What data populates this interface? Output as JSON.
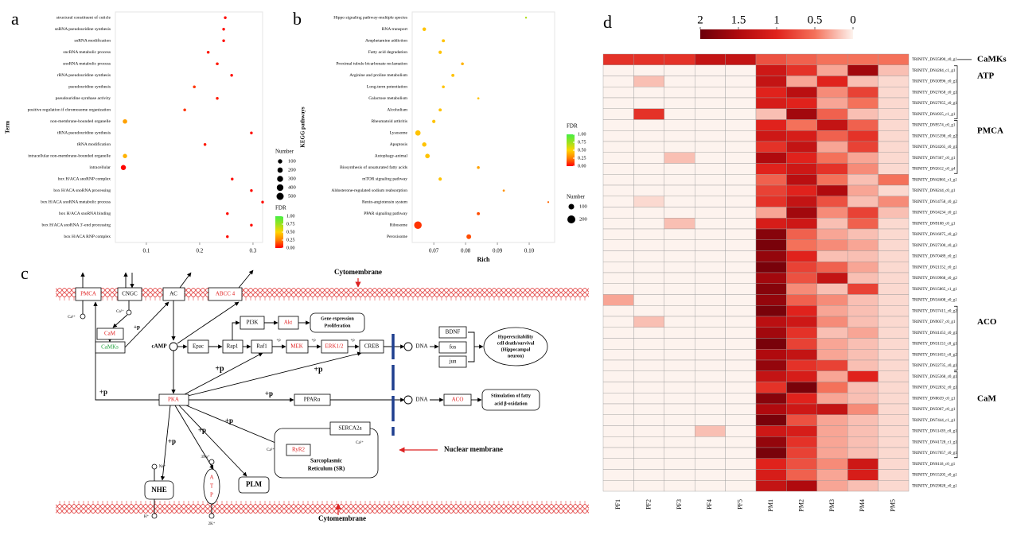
{
  "panel_labels": [
    "a",
    "b",
    "c",
    "d"
  ],
  "chart_data": [
    {
      "type": "dot",
      "ylabel": "Term",
      "categories": [
        "structural constituent of cuticle",
        "snRNA pseudouridine synthesis",
        "snRNA modification",
        "sncRNA metabolic process",
        "snoRNA metabolic process",
        "rRNA pseudouridine synthesis",
        "pseudouridine synthesis",
        "pseudouridine synthase activity",
        "positive regulation if chromosome organization",
        "non-membrane-bounded organelle",
        "tRNA pseudouridine synthesis",
        "tRNA modification",
        "intracellular non-membrane-bounded organelle",
        "intracellular",
        "box H/ACA snoRNP complex",
        "box H/ACA snoRNA processing",
        "box H/ACA snoRNA metabolic process",
        "box H/ACA snoRNA binding",
        "box H/ACA snoRNA 3'-end processing",
        "box H/ACA RNP complex"
      ],
      "values": [
        0.248,
        0.245,
        0.245,
        0.216,
        0.233,
        0.26,
        0.19,
        0.233,
        0.172,
        0.06,
        0.297,
        0.21,
        0.06,
        0.057,
        0.261,
        0.297,
        0.318,
        0.252,
        0.297,
        0.252
      ],
      "sizes": [
        8,
        8,
        8,
        12,
        12,
        8,
        10,
        9,
        10,
        110,
        8,
        10,
        95,
        180,
        8,
        8,
        8,
        8,
        8,
        8
      ],
      "fdr": [
        0.02,
        0.02,
        0.02,
        0.05,
        0.05,
        0.02,
        0.1,
        0.05,
        0.1,
        0.35,
        0.02,
        0.05,
        0.4,
        0.01,
        0.02,
        0.02,
        0.02,
        0.02,
        0.02,
        0.02
      ],
      "xlim": [
        0.042,
        0.318
      ],
      "xticks": [
        0.1,
        0.2,
        0.3
      ],
      "size_legend": {
        "title": "Number",
        "values": [
          100,
          200,
          300,
          400,
          500
        ]
      },
      "color_legend": {
        "title": "FDR",
        "clim": [
          0,
          1
        ],
        "ticks": [
          {
            "value": 1,
            "label": "1.00"
          },
          {
            "value": 0.75,
            "label": "0.75"
          },
          {
            "value": 0.5,
            "label": "0.50"
          },
          {
            "value": 0.25,
            "label": "0.25"
          },
          {
            "value": 0,
            "label": "0.00"
          }
        ],
        "colors": [
          "#ff0000",
          "#ff7f00",
          "#ffd400",
          "#9be21e",
          "#44ee44"
        ]
      }
    },
    {
      "type": "dot",
      "xlabel": "Rich",
      "ylabel": "KEGG pathways",
      "categories": [
        "Hippo signaling pathway-multiple species",
        "RNA transport",
        "Amphetamine addiction",
        "Fatty acid degradation",
        "Proximal tubule bicarbonate reclamation",
        "Arginine and proline metabolism",
        "Long-term potentiation",
        "Galactose metabolism",
        "Alcoholism",
        "Rheumatoid arthritis",
        "Lysosome",
        "Apoptosis",
        "Autophagy-animal",
        "Biosynthesis of unsaturated fatty acids",
        "mTOR signaling pathway",
        "Aldosterone-regulated sodium reabsorption",
        "Renin-angiotensin system",
        "PPAR signaling pathway",
        "Ribosome",
        "Peroxisome"
      ],
      "values": [
        0.099,
        0.067,
        0.073,
        0.072,
        0.079,
        0.076,
        0.073,
        0.084,
        0.072,
        0.07,
        0.065,
        0.067,
        0.068,
        0.084,
        0.072,
        0.092,
        0.106,
        0.084,
        0.065,
        0.081
      ],
      "sizes": [
        12,
        40,
        30,
        35,
        25,
        30,
        25,
        15,
        30,
        35,
        90,
        60,
        65,
        25,
        35,
        15,
        10,
        30,
        180,
        70
      ],
      "fdr": [
        0.7,
        0.45,
        0.45,
        0.45,
        0.4,
        0.45,
        0.45,
        0.45,
        0.45,
        0.45,
        0.45,
        0.45,
        0.45,
        0.35,
        0.45,
        0.3,
        0.2,
        0.15,
        0.1,
        0.15
      ],
      "xlim": [
        0.0632,
        0.108
      ],
      "xticks": [
        0.07,
        0.08,
        0.09,
        {
          "value": 0.1,
          "label": "0.10"
        }
      ],
      "size_legend": {
        "title": "Number",
        "values": [
          100,
          200
        ]
      },
      "color_legend": {
        "title": "FDR",
        "clim": [
          0,
          1
        ],
        "ticks": [
          {
            "value": 1,
            "label": "1.00"
          },
          {
            "value": 0.75,
            "label": "0.75"
          },
          {
            "value": 0.5,
            "label": "0.50"
          },
          {
            "value": 0.25,
            "label": "0.25"
          },
          {
            "value": 0,
            "label": "0.00"
          }
        ],
        "colors": [
          "#ff0000",
          "#ff7f00",
          "#ffd400",
          "#9be21e",
          "#44ee44"
        ]
      }
    },
    {
      "type": "heatmap",
      "categories": [
        "PF1",
        "PF2",
        "PF3",
        "PF4",
        "PF5",
        "PM1",
        "PM2",
        "PM3",
        "PM4",
        "PM5"
      ],
      "rows": [
        "TRINITY_DN35890_c0_g1",
        "TRINITY_DN4284_c1_g1",
        "TRINITY_DN30996_c0_g1",
        "TRINITY_DN27658_c0_g1",
        "TRINITY_DN27955_c0_g1",
        "TRINITY_DN4935_c1_g1",
        "TRINITY_DN9574_c0_g1",
        "TRINITY_DN15398_c0_g2",
        "TRINITY_DN24265_c0_g1",
        "TRINITY_DN7367_c0_g1",
        "TRINITY_DN2612_c0_g4",
        "TRINITY_DN42865_c1_g1",
        "TRINITY_DN6244_c0_g1",
        "TRINITY_DN14758_c0_g2",
        "TRINITY_DN34234_c0_g1",
        "TRINITY_DN9108_c0_g1",
        "TRINITY_DN16075_c0_g2",
        "TRINITY_DN27300_c0_g3",
        "TRINITY_DN70489_c0_g1",
        "TRINITY_DN21552_c0_g1",
        "TRINITY_DN19968_c0_g2",
        "TRINITY_DN15865_c1_g1",
        "TRINITY_DN34408_c0_g1",
        "TRINITY_DN37415_c0_g2",
        "TRINITY_DN9057_c0_g1",
        "TRINITY_DN41453_c0_g1",
        "TRINITY_DN31153_c0_g1",
        "TRINITY_DN11653_c0_g2",
        "TRINITY_DN22735_c0_g1",
        "TRINITY_DN25368_c0_g1",
        "TRINITY_DN22832_c0_g1",
        "TRINITY_DN8639_c0_g1",
        "TRINITY_DN5067_c0_g1",
        "TRINITY_DN7444_c1_g1",
        "TRINITY_DN11439_c0_g1",
        "TRINITY_DN41728_c1_g1",
        "TRINITY_DN17057_c0_g1",
        "TRINITY_DN6118_c0_g1",
        "TRINITY_DN15205_c0_g1",
        "TRINITY_DN29828_c0_g1"
      ],
      "values": [
        [
          0.9,
          0.9,
          0.9,
          1.3,
          1.3,
          0.7,
          0.6,
          0.5,
          0.5,
          0.5
        ],
        [
          0,
          0,
          0,
          0,
          0,
          1.2,
          0.9,
          0.3,
          1.6,
          0.2
        ],
        [
          0,
          0.2,
          0,
          0,
          0,
          1.3,
          0.3,
          1.0,
          0.2,
          0.1
        ],
        [
          0,
          0,
          0,
          0,
          0,
          1.0,
          1.4,
          0.4,
          0.8,
          0.1
        ],
        [
          0,
          0,
          0,
          0,
          0,
          1.1,
          1.0,
          0.3,
          0.5,
          0.1
        ],
        [
          0,
          0.9,
          0,
          0,
          0,
          0.2,
          1.6,
          0.6,
          0.2,
          0.1
        ],
        [
          0,
          0,
          0,
          0,
          0,
          1.0,
          0.5,
          1.3,
          0.6,
          0.1
        ],
        [
          0,
          0,
          0,
          0,
          0,
          1.2,
          1.1,
          0.6,
          0.9,
          0.1
        ],
        [
          0,
          0,
          0,
          0,
          0,
          0.9,
          1.3,
          0.3,
          0.8,
          0.1
        ],
        [
          0,
          0,
          0.2,
          0,
          0,
          1.5,
          1.0,
          0.5,
          0.3,
          0.1
        ],
        [
          0,
          0,
          0,
          0,
          0,
          1.0,
          1.2,
          0.9,
          0.4,
          0.1
        ],
        [
          0,
          0,
          0,
          0,
          0,
          0.6,
          1.4,
          0.5,
          0.2,
          0.5
        ],
        [
          0,
          0,
          0,
          0,
          0,
          0.8,
          1.0,
          1.5,
          0.3,
          0.1
        ],
        [
          0,
          0.1,
          0,
          0,
          0,
          0.9,
          1.3,
          0.7,
          0.2,
          0.4
        ],
        [
          0,
          0,
          0,
          0,
          0,
          0.3,
          1.6,
          0.4,
          0.8,
          0.2
        ],
        [
          0,
          0,
          0.2,
          0,
          0,
          1.1,
          1.2,
          0.2,
          0.6,
          0.1
        ],
        [
          0,
          0,
          0,
          0,
          0,
          1.8,
          0.6,
          0.3,
          0.2,
          0.1
        ],
        [
          0,
          0,
          0,
          0,
          0,
          1.9,
          0.5,
          0.4,
          0.3,
          0.1
        ],
        [
          0,
          0,
          0,
          0,
          0,
          1.7,
          1.0,
          0.2,
          0.2,
          0.1
        ],
        [
          0,
          0,
          0,
          0,
          0,
          1.9,
          0.8,
          0.6,
          0.3,
          0.1
        ],
        [
          0,
          0,
          0,
          0,
          0,
          1.6,
          0.7,
          1.3,
          0.2,
          0.1
        ],
        [
          0,
          0,
          0,
          0,
          0,
          1.8,
          0.4,
          0.2,
          0.8,
          0.1
        ],
        [
          0.3,
          0,
          0,
          0,
          0,
          1.7,
          0.6,
          0.4,
          0.2,
          0.1
        ],
        [
          0,
          0,
          0,
          0,
          0,
          1.9,
          1.0,
          0.3,
          0.2,
          0.1
        ],
        [
          0,
          0.2,
          0,
          0,
          0,
          1.4,
          1.2,
          0.4,
          0.2,
          0.1
        ],
        [
          0,
          0,
          0,
          0,
          0,
          1.6,
          0.9,
          0.2,
          0.3,
          0.1
        ],
        [
          0,
          0,
          0,
          0,
          0,
          1.9,
          0.8,
          0.3,
          0.2,
          0.1
        ],
        [
          0,
          0,
          0,
          0,
          0,
          1.5,
          1.3,
          0.3,
          0.2,
          0.1
        ],
        [
          0,
          0,
          0,
          0,
          0,
          1.7,
          0.9,
          0.8,
          0.2,
          0.1
        ],
        [
          0,
          0,
          0,
          0,
          0,
          1.3,
          1.1,
          0.3,
          1.0,
          0.1
        ],
        [
          0,
          0,
          0,
          0,
          0,
          0.9,
          1.9,
          0.5,
          0.2,
          0.1
        ],
        [
          0,
          0,
          0,
          0,
          0,
          1.8,
          1.0,
          0.3,
          0.2,
          0.1
        ],
        [
          0,
          0,
          0,
          0,
          0,
          1.5,
          1.2,
          1.3,
          0.4,
          0.1
        ],
        [
          0,
          0,
          0,
          0,
          0,
          1.9,
          0.7,
          0.3,
          0.2,
          0.1
        ],
        [
          0,
          0,
          0,
          0.2,
          0,
          1.2,
          1.1,
          0.3,
          0.2,
          0.1
        ],
        [
          0,
          0,
          0,
          0,
          0,
          1.7,
          0.9,
          0.3,
          0.2,
          0.1
        ],
        [
          0,
          0,
          0,
          0,
          0,
          1.9,
          0.8,
          0.3,
          0.2,
          0.1
        ],
        [
          0,
          0,
          0,
          0,
          0,
          1.0,
          0.7,
          0.4,
          1.2,
          0.1
        ],
        [
          0,
          0,
          0,
          0,
          0,
          1.1,
          0.6,
          0.3,
          1.1,
          0.1
        ],
        [
          0,
          0,
          0,
          0,
          0,
          1.3,
          1.5,
          0.3,
          0.2,
          0.1
        ]
      ],
      "zlim": [
        0,
        2
      ],
      "zticks": [
        2,
        1.5,
        1,
        0.5,
        0
      ],
      "colors": [
        "#fdf3ee",
        "#f4715a",
        "#e0221c",
        "#b00a0e",
        "#6b0009"
      ],
      "groups": [
        {
          "label": "CaMKs",
          "rows": [
            0,
            0
          ],
          "color": "#1e9e3a"
        },
        {
          "label": "ATP",
          "rows": [
            1,
            5
          ],
          "color": "#e03c31"
        },
        {
          "label": "PMCA",
          "rows": [
            6,
            10
          ],
          "color": "#e03c31"
        },
        {
          "label": "ACO",
          "rows": [
            23,
            28
          ],
          "color": "#e03c31"
        },
        {
          "label": "CaM",
          "rows": [
            29,
            36
          ],
          "color": "#e03c31"
        }
      ]
    }
  ],
  "diagram": {
    "nodes": [
      "PMCA",
      "CNGC",
      "AC",
      "ABCC 4",
      "Cytomembrane",
      "Ca²⁺",
      "Ca²⁺",
      "CaM",
      "CaMKs",
      "+p",
      "cAMP",
      "Epac",
      "Rap1",
      "PI3K",
      "Akt",
      "Gene expression",
      "Proliferation",
      "Raf1",
      "+p",
      "MEK",
      "+p",
      "ERK1/2",
      "+p",
      "CREB",
      "DNA",
      "BDNF",
      "fos",
      "jun",
      "Hyperexcitability",
      "cell death/survival",
      "(Hippocampal",
      "neuron)",
      "+p",
      "+p",
      "+p",
      "PKA",
      "+p",
      "PPARα",
      "DNA",
      "ACO",
      "Stimulation of fatty",
      "acid β-oxidation",
      "+p",
      "+p",
      "SERCA2a",
      "Ca²⁺",
      "Ca²⁺",
      "RyR2",
      "Sarcoplasmic",
      "Reticulum (SR)",
      "Nuclear membrane",
      "+p",
      "Na⁺",
      "3Na⁺",
      "NHE",
      "A",
      "T",
      "P",
      "PLM",
      "H⁺",
      "2K⁺",
      "Cytomembrane"
    ]
  }
}
